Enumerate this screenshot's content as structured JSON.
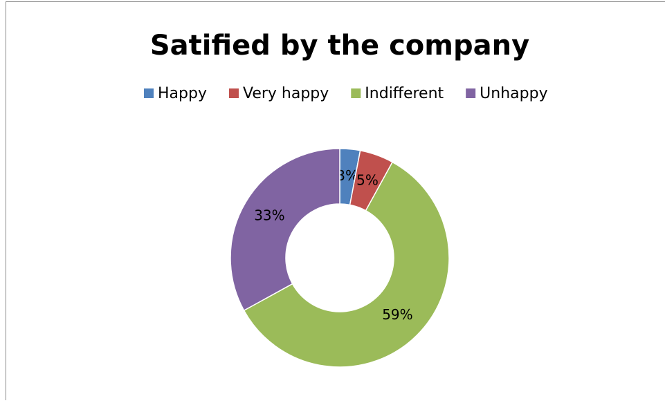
{
  "chart_data": {
    "type": "donut",
    "title": "Satified by the company",
    "categories": [
      "Happy",
      "Very happy",
      "Indifferent",
      "Unhappy"
    ],
    "values": [
      3,
      5,
      59,
      33
    ],
    "value_labels": [
      "3%",
      "5%",
      "59%",
      "33%"
    ],
    "colors": [
      "#4f81bd",
      "#c0504d",
      "#9bbb59",
      "#8064a2"
    ],
    "legend": "top"
  }
}
